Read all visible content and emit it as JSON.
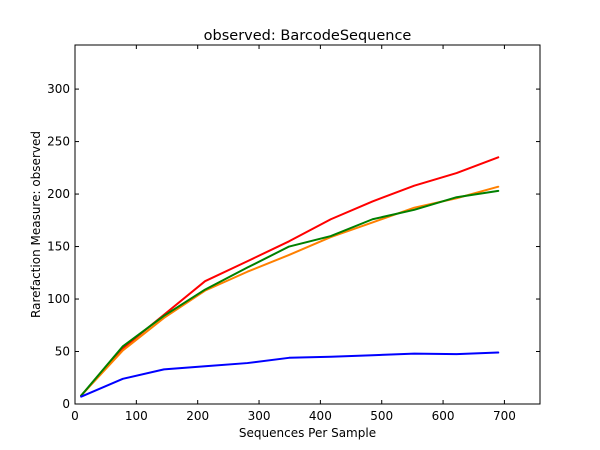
{
  "chart_data": {
    "type": "line",
    "title": "observed: BarcodeSequence",
    "xlabel": "Sequences Per Sample",
    "ylabel": "Rarefaction Measure: observed",
    "xlim": [
      0,
      758
    ],
    "ylim": [
      0,
      342
    ],
    "xticks": [
      0,
      100,
      200,
      300,
      400,
      500,
      600,
      700
    ],
    "yticks": [
      0,
      50,
      100,
      150,
      200,
      250,
      300
    ],
    "grid": false,
    "x": [
      10,
      78,
      145,
      212,
      281,
      349,
      417,
      485,
      553,
      622,
      690
    ],
    "series": [
      {
        "color": "#ff0000",
        "values": [
          8,
          53,
          85,
          117,
          136,
          155,
          176,
          193,
          208,
          220,
          235
        ]
      },
      {
        "color": "#ff8000",
        "values": [
          8,
          51,
          82,
          108,
          126,
          142,
          159,
          173,
          187,
          196,
          207
        ]
      },
      {
        "color": "#008000",
        "values": [
          8,
          55,
          84,
          109,
          130,
          150,
          160,
          176,
          185,
          197,
          203
        ]
      },
      {
        "color": "#0000ff",
        "values": [
          7,
          24,
          33,
          36,
          39,
          44,
          45,
          46.5,
          48,
          47.5,
          49
        ]
      }
    ]
  }
}
